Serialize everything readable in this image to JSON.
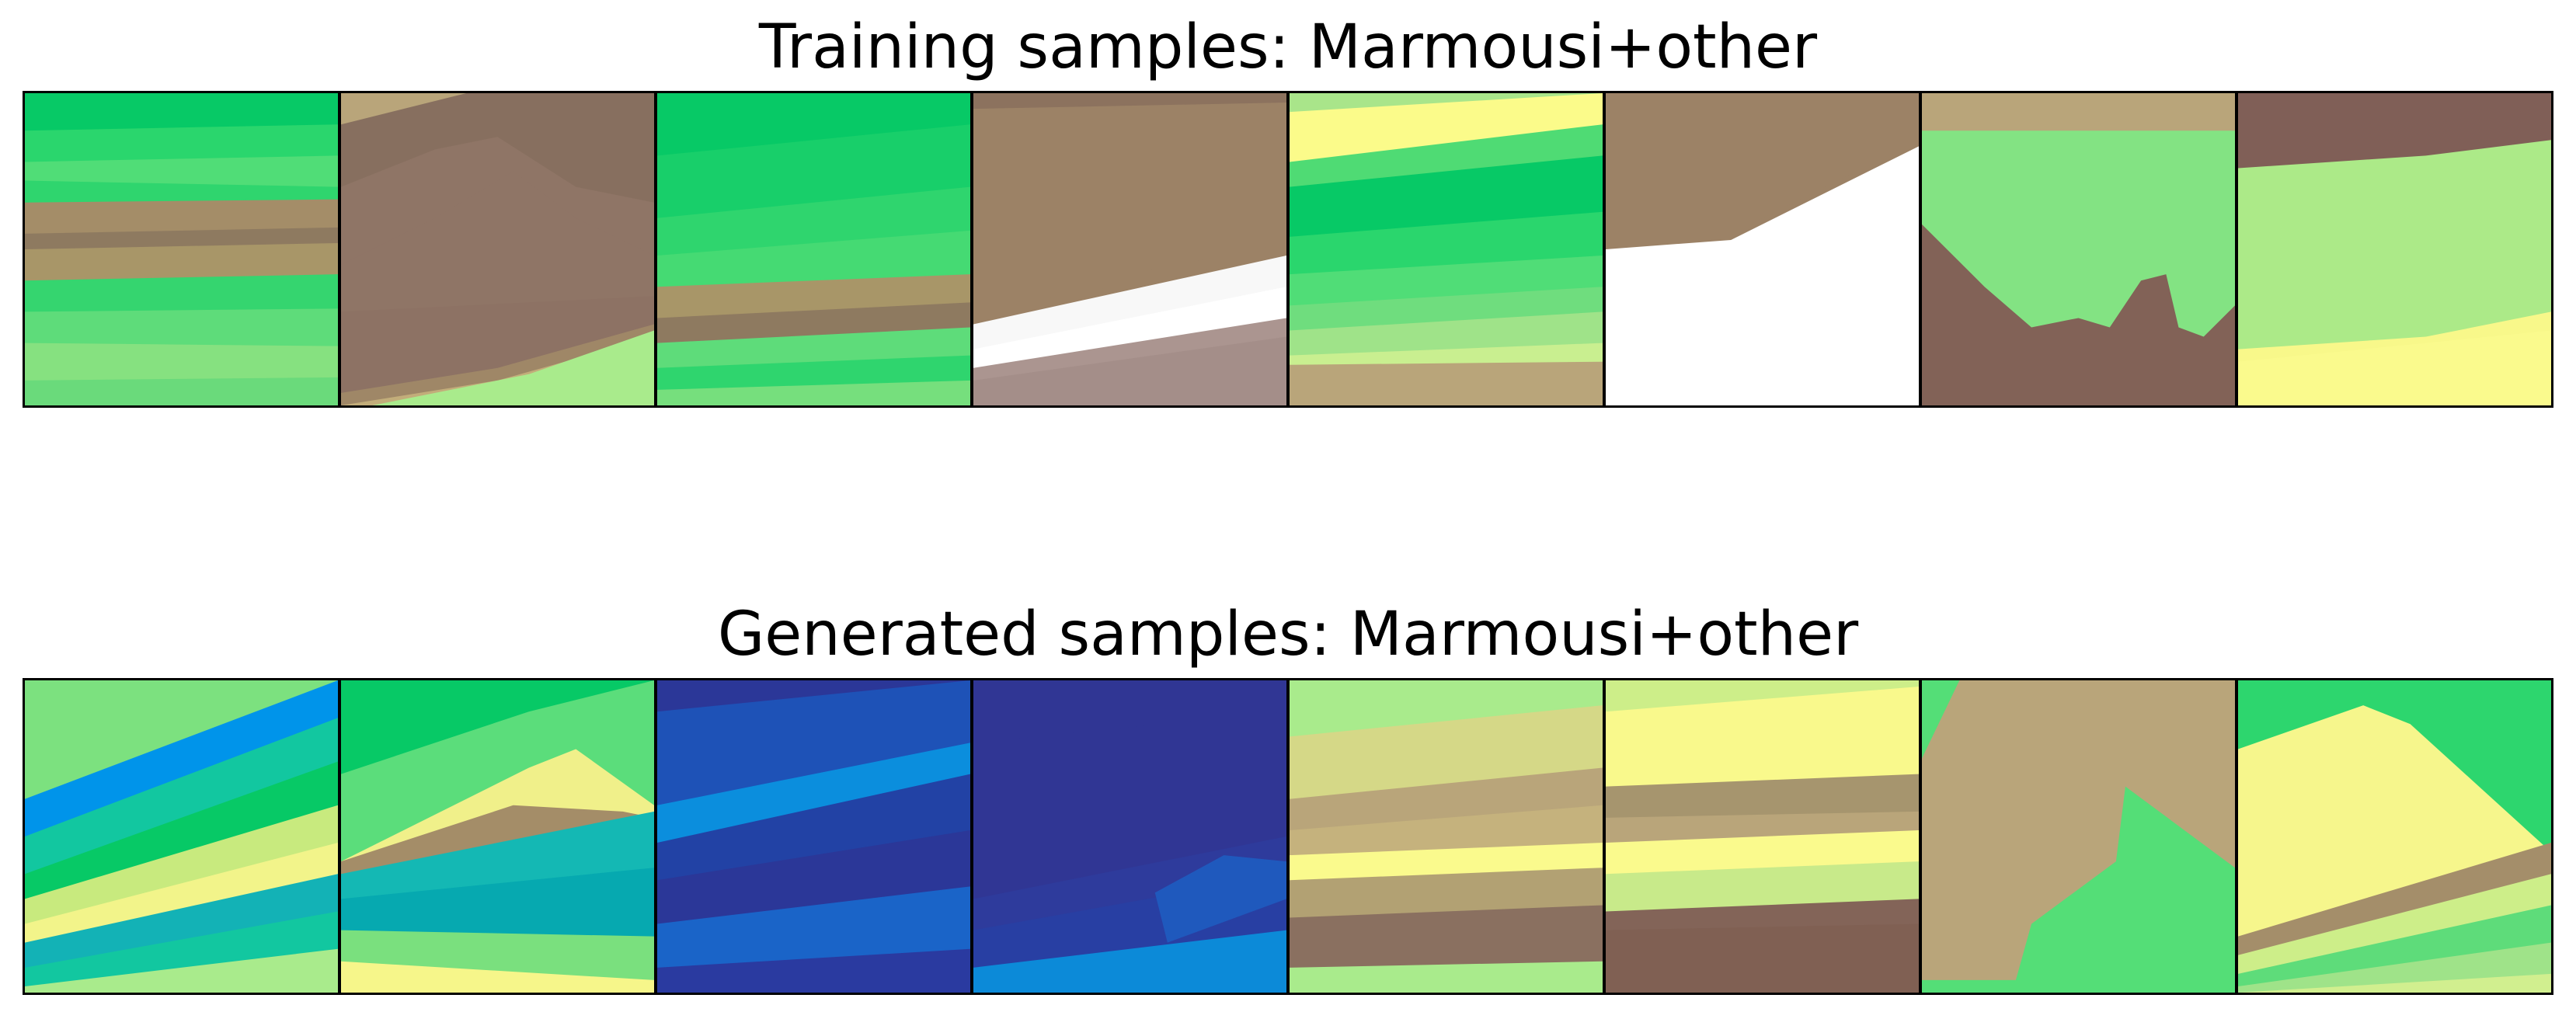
{
  "panels": [
    {
      "title": "Training samples: Marmousi+other",
      "samples": [
        {
          "layers": [
            [
              "#07c966",
              "#2ad66d",
              "#50dd77",
              "#2fd56e",
              "#a48d68",
              "#8e7a60",
              "#a89668",
              "#35d56f",
              "#5edc7a",
              "#86e180",
              "#6ada7b"
            ]
          ]
        },
        {
          "layers": [
            [
              "#b9a57a",
              "#876f5f",
              "#8f7566",
              "#8f7566",
              "#8d7264",
              "#9f8767",
              "#c2ad7a",
              "#a9eb8c",
              "#a9eb8c"
            ]
          ]
        },
        {
          "layers": [
            [
              "#07c966",
              "#18cf6a",
              "#2fd56e",
              "#45da73",
              "#a89668",
              "#8e7a60",
              "#5edc7a",
              "#2fd56e",
              "#76df7d"
            ]
          ]
        },
        {
          "layers": [
            [
              "#8c725e",
              "#9c8266",
              "#9c8266",
              "#9c8266",
              "#f8f8f8",
              "#ffffff",
              "#ab9590",
              "#a48e89"
            ]
          ]
        },
        {
          "layers": [
            [
              "#a9e58a",
              "#fbfb8a",
              "#4fdb74",
              "#07c966",
              "#2ad66d",
              "#50dd77",
              "#6fdd7e",
              "#9fe389",
              "#c9ef90",
              "#b9a57a"
            ]
          ]
        },
        {
          "layers": [
            [
              "#9c8266",
              "#9c8266",
              "#ffffff",
              "#ffffff",
              "#ffffff"
            ]
          ]
        },
        {
          "layers": [
            [
              "#b9a57a",
              "#83e383",
              "#83e383",
              "#83e383",
              "#826257",
              "#826257"
            ]
          ]
        },
        {
          "layers": [
            [
              "#805f57",
              "#acea88",
              "#acea88",
              "#f8f88a",
              "#fafa8d"
            ]
          ]
        }
      ]
    },
    {
      "title": "Generated samples: Marmousi+other",
      "samples": [
        {
          "layers": [
            [
              "#7ce17f",
              "#0094ea",
              "#12c7a0",
              "#07c966",
              "#c8ea7e",
              "#f2f48a",
              "#13b2b6",
              "#12c7a0",
              "#a9eb8c"
            ]
          ]
        },
        {
          "layers": [
            [
              "#07c966",
              "#5bdd7b",
              "#f0f08a",
              "#a48d68",
              "#14b8b4",
              "#06a9b0",
              "#7ae07e",
              "#f6f68a"
            ]
          ]
        },
        {
          "layers": [
            [
              "#2b3798",
              "#1e52b7",
              "#0b8edd",
              "#2242a5",
              "#2b3798",
              "#1a64c8",
              "#2a3aa0"
            ]
          ]
        },
        {
          "layers": [
            [
              "#303694",
              "#303694",
              "#2e3b9c",
              "#283fa3",
              "#1f59bd",
              "#0c8ad8"
            ]
          ]
        },
        {
          "layers": [
            [
              "#a9eb8c",
              "#d5d887",
              "#b9a57a",
              "#c5b27d",
              "#fafa8d",
              "#b2a173",
              "#8a7060",
              "#a9eb8c"
            ]
          ]
        },
        {
          "layers": [
            [
              "#cdee89",
              "#f9f98c",
              "#a6956e",
              "#b9a57a",
              "#fafa8d",
              "#c8ea8a",
              "#836458",
              "#806053"
            ]
          ]
        },
        {
          "layers": [
            [
              "#b9a57a",
              "#b9a57a",
              "#54de77",
              "#54de77"
            ]
          ]
        },
        {
          "layers": [
            [
              "#2dd66e",
              "#f6f68c",
              "#a48e6a",
              "#cdee89",
              "#5edc7a",
              "#9fe389",
              "#d1ef8f"
            ]
          ]
        }
      ]
    }
  ]
}
